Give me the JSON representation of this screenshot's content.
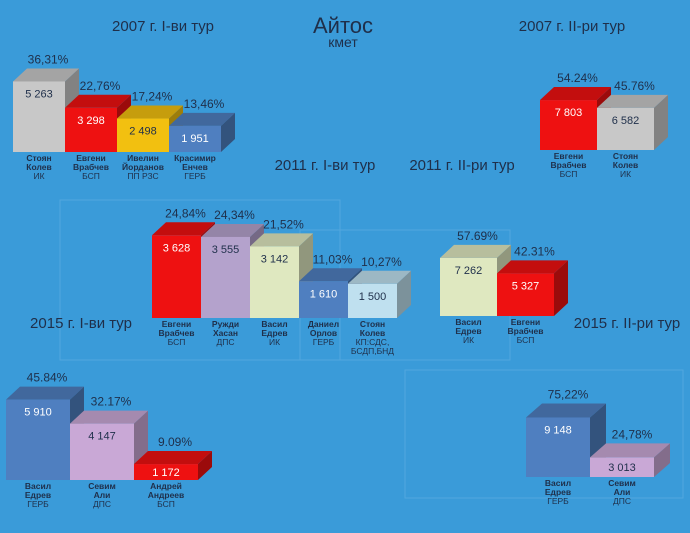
{
  "title": "Айтос",
  "subtitle": "кмет",
  "colors": {
    "background": "#3a9bd9",
    "panel": "#3b9edc",
    "text": "#1f2f4a",
    "blue": "#4f7fc0",
    "red": "#ee1111",
    "grey": "#c8c8c8",
    "lavender": "#b4a2cc",
    "yellow": "#f2c010",
    "cream": "#dfe8c0",
    "light_blue": "#bfe0ef",
    "lilac": "#c9a8d6"
  },
  "chart_data": [
    {
      "type": "bar",
      "title": "2007 г. I-ви тур",
      "categories": [
        "Стоян Колев ИК",
        "Евгени Врабчев БСП",
        "Ивелин Йорданов ПП РЗС",
        "Красимир Енчев ГЕРБ"
      ],
      "values": [
        5263,
        3298,
        2498,
        1951
      ],
      "value_labels": [
        "5 263",
        "3 298",
        "2 498",
        "1 951"
      ],
      "percent_labels": [
        "36,31%",
        "22,76%",
        "17,24%",
        "13,46%"
      ],
      "candidates": [
        {
          "lines": [
            "Стоян",
            "Колев",
            "ИК"
          ],
          "color": "grey"
        },
        {
          "lines": [
            "Евгени",
            "Врабчев",
            "БСП"
          ],
          "color": "red"
        },
        {
          "lines": [
            "Ивелин",
            "Йорданов",
            "ПП РЗС"
          ],
          "color": "yellow"
        },
        {
          "lines": [
            "Красимир",
            "Енчев",
            "ГЕРБ"
          ],
          "color": "blue"
        }
      ]
    },
    {
      "type": "bar",
      "title": "2007 г. II-ри тур",
      "categories": [
        "Евгени Врабчев БСП",
        "Стоян Колев ИК"
      ],
      "values": [
        7803,
        6582
      ],
      "value_labels": [
        "7 803",
        "6 582"
      ],
      "percent_labels": [
        "54.24%",
        "45.76%"
      ],
      "candidates": [
        {
          "lines": [
            "Евгени",
            "Врабчев",
            "БСП"
          ],
          "color": "red"
        },
        {
          "lines": [
            "Стоян",
            "Колев",
            "ИК"
          ],
          "color": "grey"
        }
      ]
    },
    {
      "type": "bar",
      "title": "2011 г. I-ви тур",
      "categories": [
        "Евгени Врабчев БСП",
        "Ружди Хасан ДПС",
        "Васил Едрев ИК",
        "Даниел Орлов ГЕРБ",
        "Стоян Колев КП:СДС, БСДП,БНД"
      ],
      "values": [
        3628,
        3555,
        3142,
        1610,
        1500
      ],
      "value_labels": [
        "3 628",
        "3 555",
        "3 142",
        "1 610",
        "1 500"
      ],
      "percent_labels": [
        "24,84%",
        "24,34%",
        "21,52%",
        "11,03%",
        "10,27%"
      ],
      "candidates": [
        {
          "lines": [
            "Евгени",
            "Врабчев",
            "БСП"
          ],
          "color": "red"
        },
        {
          "lines": [
            "Ружди",
            "Хасан",
            "ДПС"
          ],
          "color": "lavender"
        },
        {
          "lines": [
            "Васил",
            "Едрев",
            "ИК"
          ],
          "color": "cream"
        },
        {
          "lines": [
            "Даниел",
            "Орлов",
            "ГЕРБ"
          ],
          "color": "blue"
        },
        {
          "lines": [
            "Стоян",
            "Колев",
            "КП:СДС,",
            "БСДП,БНД"
          ],
          "color": "light_blue"
        }
      ]
    },
    {
      "type": "bar",
      "title": "2011 г. II-ри тур",
      "categories": [
        "Васил Едрев ИК",
        "Евгени Врабчев БСП"
      ],
      "values": [
        7262,
        5327
      ],
      "value_labels": [
        "7 262",
        "5 327"
      ],
      "percent_labels": [
        "57.69%",
        "42.31%"
      ],
      "candidates": [
        {
          "lines": [
            "Васил",
            "Едрев",
            "ИК"
          ],
          "color": "cream"
        },
        {
          "lines": [
            "Евгени",
            "Врабчев",
            "БСП"
          ],
          "color": "red"
        }
      ]
    },
    {
      "type": "bar",
      "title": "2015 г. I-ви тур",
      "categories": [
        "Васил Едрев ГЕРБ",
        "Севим Али ДПС",
        "Андрей Андреев БСП"
      ],
      "values": [
        5910,
        4147,
        1172
      ],
      "value_labels": [
        "5 910",
        "4 147",
        "1 172"
      ],
      "percent_labels": [
        "45.84%",
        "32.17%",
        "9.09%"
      ],
      "candidates": [
        {
          "lines": [
            "Васил",
            "Едрев",
            "ГЕРБ"
          ],
          "color": "blue"
        },
        {
          "lines": [
            "Севим",
            "Али",
            "ДПС"
          ],
          "color": "lilac"
        },
        {
          "lines": [
            "Андрей",
            "Андреев",
            "БСП"
          ],
          "color": "red"
        }
      ]
    },
    {
      "type": "bar",
      "title": "2015 г. II-ри тур",
      "categories": [
        "Васил Едрев ГЕРБ",
        "Севим Али ДПС"
      ],
      "values": [
        9148,
        3013
      ],
      "value_labels": [
        "9 148",
        "3 013"
      ],
      "percent_labels": [
        "75,22%",
        "24,78%"
      ],
      "candidates": [
        {
          "lines": [
            "Васил",
            "Едрев",
            "ГЕРБ"
          ],
          "color": "blue"
        },
        {
          "lines": [
            "Севим",
            "Али",
            "ДПС"
          ],
          "color": "lilac"
        }
      ]
    }
  ]
}
